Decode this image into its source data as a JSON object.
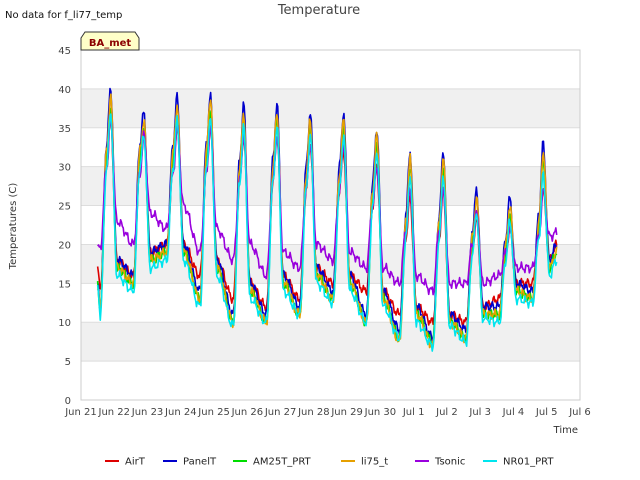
{
  "no_data_note": "No data for f_li77_temp",
  "chart_data": {
    "type": "line",
    "title": "Temperature",
    "xlabel": "Time",
    "ylabel": "Temperatures (C)",
    "annotation": "BA_met",
    "ylim": [
      0,
      45
    ],
    "xlim": [
      0,
      15
    ],
    "yticks": [
      0,
      5,
      10,
      15,
      20,
      25,
      30,
      35,
      40,
      45
    ],
    "xticks": [
      {
        "x": 0,
        "label": "Jun 21"
      },
      {
        "x": 1,
        "label": "Jun 22"
      },
      {
        "x": 2,
        "label": "Jun 23"
      },
      {
        "x": 3,
        "label": "Jun 24"
      },
      {
        "x": 4,
        "label": "Jun 25"
      },
      {
        "x": 5,
        "label": "Jun 26"
      },
      {
        "x": 6,
        "label": "Jun 27"
      },
      {
        "x": 7,
        "label": "Jun 28"
      },
      {
        "x": 8,
        "label": "Jun 29"
      },
      {
        "x": 9,
        "label": "Jun 30"
      },
      {
        "x": 10,
        "label": "Jul 1"
      },
      {
        "x": 11,
        "label": "Jul 2"
      },
      {
        "x": 12,
        "label": "Jul 3"
      },
      {
        "x": 13,
        "label": "Jul 4"
      },
      {
        "x": 14,
        "label": "Jul 5"
      },
      {
        "x": 15,
        "label": "Jul 6"
      }
    ],
    "grid": true,
    "legend_position": "bottom",
    "series": [
      {
        "name": "AirT",
        "color": "#dd0000",
        "x": [
          0.5,
          0.58,
          0.77,
          0.89,
          1.08,
          1.58,
          1.77,
          1.89,
          2.08,
          2.58,
          2.77,
          2.89,
          3.08,
          3.58,
          3.77,
          3.89,
          4.08,
          4.58,
          4.77,
          4.89,
          5.08,
          5.58,
          5.77,
          5.89,
          6.08,
          6.58,
          6.77,
          6.89,
          7.08,
          7.58,
          7.77,
          7.89,
          8.08,
          8.58,
          8.77,
          8.89,
          9.08,
          9.58,
          9.77,
          9.89,
          10.08,
          10.58,
          10.77,
          10.89,
          11.08,
          11.58,
          11.77,
          11.89,
          12.08,
          12.58,
          12.77,
          12.89,
          13.08,
          13.58,
          13.77,
          13.89,
          14.08,
          14.3
        ],
        "y": [
          17.0,
          14.0,
          30.0,
          36.0,
          18.0,
          16.0,
          30.0,
          34.0,
          19.0,
          20.0,
          30.0,
          35.0,
          20.0,
          16.0,
          30.0,
          35.0,
          18.0,
          13.0,
          28.0,
          34.0,
          15.0,
          12.0,
          28.0,
          34.0,
          16.0,
          13.0,
          27.0,
          33.0,
          17.0,
          15.0,
          27.0,
          32.0,
          16.0,
          14.0,
          25.0,
          30.0,
          14.0,
          11.0,
          21.0,
          26.0,
          12.0,
          10.0,
          21.0,
          27.0,
          11.0,
          10.0,
          20.0,
          23.0,
          12.0,
          13.0,
          19.0,
          22.0,
          15.0,
          15.0,
          22.0,
          27.0,
          18.0,
          20.0
        ]
      },
      {
        "name": "PanelT",
        "color": "#0000cc",
        "x": [
          0.5,
          0.58,
          0.77,
          0.89,
          1.08,
          1.58,
          1.77,
          1.89,
          2.08,
          2.58,
          2.77,
          2.89,
          3.08,
          3.58,
          3.77,
          3.89,
          4.08,
          4.58,
          4.77,
          4.89,
          5.08,
          5.58,
          5.77,
          5.89,
          6.08,
          6.58,
          6.77,
          6.89,
          7.08,
          7.58,
          7.77,
          7.89,
          8.08,
          8.58,
          8.77,
          8.89,
          9.08,
          9.58,
          9.77,
          9.89,
          10.08,
          10.58,
          10.77,
          10.89,
          11.08,
          11.58,
          11.77,
          11.89,
          12.08,
          12.58,
          12.77,
          12.89,
          13.08,
          13.58,
          13.77,
          13.89,
          14.08,
          14.3
        ],
        "y": [
          15.0,
          12.0,
          33.0,
          40.0,
          18.0,
          16.0,
          33.0,
          37.0,
          19.0,
          20.0,
          33.0,
          39.0,
          20.0,
          14.0,
          33.0,
          39.0,
          18.0,
          11.0,
          31.0,
          38.0,
          15.0,
          11.0,
          31.0,
          38.0,
          16.0,
          12.0,
          30.0,
          37.0,
          17.0,
          14.0,
          30.0,
          37.0,
          16.0,
          11.0,
          28.0,
          35.0,
          14.0,
          9.0,
          24.0,
          32.0,
          12.0,
          8.0,
          24.0,
          32.0,
          11.0,
          9.0,
          22.0,
          27.0,
          12.0,
          12.0,
          21.0,
          26.0,
          15.0,
          14.0,
          24.0,
          33.0,
          18.0,
          20.0
        ]
      },
      {
        "name": "AM25T_PRT",
        "color": "#00dd00",
        "x": [
          0.5,
          0.58,
          0.77,
          0.89,
          1.08,
          1.58,
          1.77,
          1.89,
          2.08,
          2.58,
          2.77,
          2.89,
          3.08,
          3.58,
          3.77,
          3.89,
          4.08,
          4.58,
          4.77,
          4.89,
          5.08,
          5.58,
          5.77,
          5.89,
          6.08,
          6.58,
          6.77,
          6.89,
          7.08,
          7.58,
          7.77,
          7.89,
          8.08,
          8.58,
          8.77,
          8.89,
          9.08,
          9.58,
          9.77,
          9.89,
          10.08,
          10.58,
          10.77,
          10.89,
          11.08,
          11.58,
          11.77,
          11.89,
          12.08,
          12.58,
          12.77,
          12.89,
          13.08,
          13.58,
          13.77,
          13.89,
          14.08,
          14.3
        ],
        "y": [
          15.0,
          11.5,
          31.0,
          38.0,
          17.0,
          15.0,
          31.0,
          35.0,
          18.0,
          19.0,
          31.0,
          37.0,
          19.0,
          13.0,
          31.0,
          37.0,
          17.0,
          10.0,
          29.0,
          36.0,
          14.0,
          10.0,
          29.0,
          36.0,
          15.0,
          11.0,
          28.0,
          35.0,
          16.0,
          13.0,
          28.0,
          35.0,
          15.0,
          10.0,
          26.0,
          33.0,
          13.0,
          8.0,
          22.0,
          30.0,
          11.0,
          7.5,
          22.0,
          30.0,
          10.0,
          8.0,
          20.0,
          25.0,
          11.0,
          11.0,
          19.0,
          24.0,
          14.0,
          13.0,
          22.0,
          31.0,
          17.0,
          19.0
        ]
      },
      {
        "name": "li75_t",
        "color": "#e6a000",
        "x": [
          0.5,
          0.58,
          0.77,
          0.89,
          1.08,
          1.58,
          1.77,
          1.89,
          2.08,
          2.58,
          2.77,
          2.89,
          3.08,
          3.58,
          3.77,
          3.89,
          4.08,
          4.58,
          4.77,
          4.89,
          5.08,
          5.58,
          5.77,
          5.89,
          6.08,
          6.58,
          6.77,
          6.89,
          7.08,
          7.58,
          7.77,
          7.89,
          8.08,
          8.58,
          8.77,
          8.89,
          9.08,
          9.58,
          9.77,
          9.89,
          10.08,
          10.58,
          10.77,
          10.89,
          11.08,
          11.58,
          11.77,
          11.89,
          12.08,
          12.58,
          12.77,
          12.89,
          13.08,
          13.58,
          13.77,
          13.89,
          14.08,
          14.3
        ],
        "y": [
          15.0,
          11.5,
          32.0,
          39.0,
          17.0,
          15.0,
          32.0,
          36.0,
          18.0,
          19.0,
          32.0,
          38.0,
          19.0,
          13.0,
          32.0,
          39.0,
          17.0,
          10.0,
          30.0,
          37.0,
          14.0,
          10.0,
          30.0,
          37.0,
          15.0,
          11.0,
          29.0,
          36.0,
          16.0,
          13.0,
          29.0,
          36.0,
          15.0,
          10.0,
          27.0,
          34.0,
          13.0,
          7.5,
          23.0,
          31.0,
          11.0,
          7.0,
          23.0,
          31.0,
          10.0,
          8.0,
          21.0,
          26.0,
          11.0,
          11.0,
          20.0,
          25.0,
          14.0,
          13.0,
          23.0,
          32.0,
          17.0,
          19.0
        ]
      },
      {
        "name": "Tsonic",
        "color": "#9900dd",
        "x": [
          0.5,
          0.58,
          0.77,
          0.89,
          1.08,
          1.58,
          1.77,
          1.89,
          2.08,
          2.58,
          2.77,
          2.89,
          3.08,
          3.58,
          3.77,
          3.89,
          4.08,
          4.58,
          4.77,
          4.89,
          5.08,
          5.58,
          5.77,
          5.89,
          6.08,
          6.58,
          6.77,
          6.89,
          7.08,
          7.58,
          7.77,
          7.89,
          8.08,
          8.58,
          8.77,
          8.89,
          9.08,
          9.58,
          9.77,
          9.89,
          10.08,
          10.58,
          10.77,
          10.89,
          11.08,
          11.58,
          11.77,
          11.89,
          12.08,
          12.58,
          12.77,
          12.89,
          13.08,
          13.58,
          13.77,
          13.89,
          14.08,
          14.3
        ],
        "y": [
          19.5,
          19.5,
          30.0,
          36.0,
          23.0,
          20.0,
          29.0,
          34.0,
          24.0,
          22.0,
          29.0,
          35.0,
          25.0,
          19.0,
          29.0,
          35.0,
          22.0,
          18.0,
          28.0,
          34.0,
          20.0,
          16.0,
          28.0,
          34.0,
          19.0,
          17.0,
          27.0,
          33.0,
          20.0,
          18.0,
          27.0,
          33.0,
          19.0,
          17.0,
          25.0,
          30.0,
          17.0,
          15.0,
          22.0,
          27.0,
          16.0,
          14.0,
          22.0,
          27.0,
          15.0,
          15.0,
          20.0,
          24.0,
          15.0,
          16.0,
          19.0,
          22.0,
          17.0,
          17.0,
          21.0,
          27.0,
          21.0,
          21.5
        ]
      },
      {
        "name": "NR01_PRT",
        "color": "#00e5ee",
        "x": [
          0.5,
          0.58,
          0.77,
          0.89,
          1.08,
          1.58,
          1.77,
          1.89,
          2.08,
          2.58,
          2.77,
          2.89,
          3.08,
          3.58,
          3.77,
          3.89,
          4.08,
          4.58,
          4.77,
          4.89,
          5.08,
          5.58,
          5.77,
          5.89,
          6.08,
          6.58,
          6.77,
          6.89,
          7.08,
          7.58,
          7.77,
          7.89,
          8.08,
          8.58,
          8.77,
          8.89,
          9.08,
          9.58,
          9.77,
          9.89,
          10.08,
          10.58,
          10.77,
          10.89,
          11.08,
          11.58,
          11.77,
          11.89,
          12.08,
          12.58,
          12.77,
          12.89,
          13.08,
          13.58,
          13.77,
          13.89,
          14.08,
          14.3
        ],
        "y": [
          14.5,
          11.0,
          30.0,
          37.0,
          16.0,
          14.0,
          30.0,
          34.0,
          17.0,
          18.0,
          30.0,
          36.0,
          18.0,
          12.0,
          30.0,
          36.0,
          16.0,
          9.5,
          28.0,
          35.0,
          13.0,
          10.0,
          28.0,
          35.0,
          14.0,
          11.0,
          27.0,
          34.0,
          15.0,
          12.5,
          27.0,
          34.0,
          14.0,
          10.0,
          25.0,
          32.0,
          12.0,
          8.0,
          21.0,
          29.0,
          10.0,
          7.0,
          21.0,
          29.0,
          9.5,
          7.5,
          19.0,
          24.0,
          10.5,
          10.0,
          18.0,
          23.0,
          13.0,
          12.5,
          21.0,
          29.0,
          16.0,
          18.0
        ]
      }
    ]
  }
}
